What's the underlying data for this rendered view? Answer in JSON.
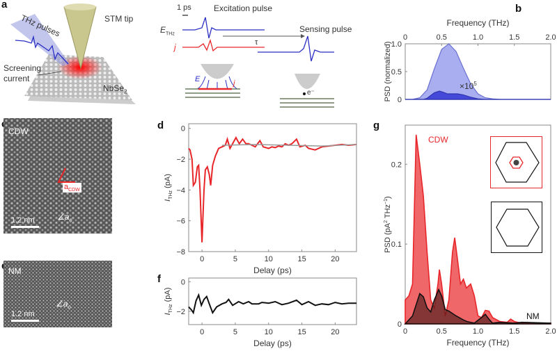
{
  "panels": {
    "a": "a",
    "b": "b",
    "c": "c",
    "d": "d",
    "e": "e",
    "f": "f",
    "g": "g"
  },
  "schematic": {
    "thz_pulses": "THz pulses",
    "stm_tip": "STM tip",
    "screening": "Screening",
    "current": "current",
    "material": "NbSe",
    "material_sub": "2",
    "scale": "1 ps",
    "excitation": "Excitation pulse",
    "sensing": "Sensing pulse",
    "e_thz": "E",
    "e_thz_sub": "THz",
    "j": "j",
    "tau": "τ",
    "E": "E",
    "electron": "e⁻"
  },
  "images": {
    "c": {
      "label": "CDW",
      "scale": "1.2 nm",
      "acdw": "a",
      "acdw_sub": "CDW",
      "a0": "a",
      "a0_sub": "0"
    },
    "e": {
      "label": "NM",
      "scale": "1.2 nm",
      "a0": "a",
      "a0_sub": "0"
    }
  },
  "colors": {
    "cdw": "#e8262a",
    "nm": "#111111",
    "pulse": "#2b2fc4",
    "psd_fill": "#a9aef0",
    "psd_inner": "#3a3fd8"
  },
  "chart_data": [
    {
      "id": "b",
      "type": "area",
      "xlabel": "Frequency (THz)",
      "xaxis_position": "top",
      "ylabel": "PSD (normalized)",
      "xlim": [
        0,
        2.0
      ],
      "ylim": [
        0,
        1.0
      ],
      "xticks": [
        "0",
        "0.5",
        "1.0",
        "1.5",
        "2.0"
      ],
      "yticks": [
        "0",
        "0.5",
        "1.0"
      ],
      "annotation": "×10",
      "annotation_sup": "5",
      "series": [
        {
          "x": [
            0,
            0.1,
            0.2,
            0.3,
            0.4,
            0.5,
            0.6,
            0.7,
            0.8,
            0.9,
            1.0,
            1.1,
            1.2,
            1.3,
            1.4,
            2.0
          ],
          "y": [
            0,
            0,
            0.03,
            0.17,
            0.55,
            0.9,
            1.0,
            0.86,
            0.56,
            0.28,
            0.1,
            0.03,
            0.01,
            0,
            0,
            0
          ]
        },
        {
          "x": [
            0,
            0.25,
            0.3,
            0.35,
            0.4,
            0.47,
            0.52,
            0.58,
            0.65,
            0.72,
            0.8,
            0.9,
            1.0,
            1.1,
            2.0
          ],
          "y": [
            0,
            0,
            0.02,
            0.07,
            0.12,
            0.15,
            0.13,
            0.1,
            0.1,
            0.1,
            0.08,
            0.04,
            0.01,
            0,
            0
          ]
        }
      ]
    },
    {
      "id": "d",
      "type": "line",
      "xlabel": "Delay (ps)",
      "ylabel": "I",
      "ylabel_sub": "THz",
      "ylabel_unit": " (pA)",
      "xlim": [
        -2,
        23.2
      ],
      "ylim": [
        -8,
        0.3
      ],
      "xticks": [
        "0",
        "5",
        "10",
        "15",
        "20"
      ],
      "yticks": [
        "0",
        "-2",
        "-4",
        "-6",
        "-8"
      ],
      "series": [
        {
          "x": [
            -2,
            -1.8,
            -1.5,
            -1.3,
            -1,
            -0.7,
            -0.5,
            -0.3,
            0,
            0.3,
            0.5,
            0.8,
            1.1,
            1.3,
            1.6,
            2,
            2.5,
            3,
            3.5,
            3.8,
            4.2,
            4.6,
            5.1,
            5.6,
            6.1,
            6.6,
            7,
            7.5,
            8,
            8.7,
            9.2,
            10,
            10.5,
            11,
            11.5,
            12,
            12.5,
            13,
            13.5,
            14.2,
            14.7,
            15.5,
            16,
            17,
            18,
            19,
            20,
            21,
            22,
            23.2
          ],
          "y": [
            -1.3,
            -1.4,
            -2,
            -3.7,
            -3.5,
            -2.5,
            -2.4,
            -4,
            -7.4,
            -4,
            -2.7,
            -2.5,
            -3,
            -3.7,
            -2.4,
            -1.8,
            -1.3,
            -1.2,
            -1.1,
            -0.7,
            -1.3,
            -1.0,
            -0.6,
            -1.0,
            -0.7,
            -1.0,
            -1.0,
            -1.1,
            -1.2,
            -0.8,
            -1.2,
            -1.3,
            -1.2,
            -1.25,
            -1.15,
            -1.2,
            -1.0,
            -1.1,
            -1.0,
            -0.7,
            -1.2,
            -1.1,
            -1.3,
            -1.4,
            -1.2,
            -1.15,
            -1.1,
            -1.05,
            -1.1,
            -1.05
          ]
        },
        {
          "x": [
            3,
            8,
            13,
            18,
            23.2
          ],
          "y": [
            -1.1,
            -1.05,
            -1.1,
            -1.15,
            -1.05
          ]
        }
      ]
    },
    {
      "id": "f",
      "type": "line",
      "xlabel": "Delay (ps)",
      "ylabel": "I",
      "ylabel_sub": "THz",
      "ylabel_unit": " (pA)",
      "xlim": [
        -2,
        23.2
      ],
      "ylim": [
        -2.9,
        0.25
      ],
      "xticks": [
        "0",
        "5",
        "10",
        "15",
        "20"
      ],
      "yticks": [
        "0",
        "-2"
      ],
      "series": [
        {
          "x": [
            -2,
            -1.6,
            -1.3,
            -0.9,
            -0.5,
            -0.1,
            0.3,
            0.7,
            1.1,
            1.6,
            2.2,
            3,
            3.6,
            4,
            4.6,
            5.5,
            6.2,
            7,
            7.5,
            8.5,
            9,
            10,
            11,
            12,
            13,
            14.2,
            15,
            16,
            17,
            18,
            19,
            20,
            21,
            22,
            23.2
          ],
          "y": [
            -1.7,
            -1.9,
            -2.1,
            -1.3,
            -0.9,
            -1.6,
            -1.2,
            -1.0,
            -1.5,
            -2.1,
            -1.7,
            -1.5,
            -1.4,
            -1.2,
            -1.6,
            -1.35,
            -1.5,
            -1.35,
            -1.5,
            -1.5,
            -1.4,
            -1.45,
            -1.35,
            -1.55,
            -1.45,
            -1.25,
            -1.55,
            -1.35,
            -1.6,
            -1.5,
            -1.55,
            -1.4,
            -1.5,
            -1.45,
            -1.45
          ]
        }
      ]
    },
    {
      "id": "g",
      "type": "area",
      "xlabel": "Frequency (THz)",
      "ylabel": "PSD (pA",
      "ylabel_sup": "2",
      "ylabel_rest": " THz",
      "ylabel_sup2": "−1",
      "ylabel_end": ")",
      "xlim": [
        0,
        2.0
      ],
      "ylim": [
        0,
        0.249
      ],
      "xticks": [
        "0",
        "0.5",
        "1.0",
        "1.5",
        "2.0"
      ],
      "yticks": [
        "0",
        "0.1",
        "0.2"
      ],
      "series": [
        {
          "name": "CDW",
          "x": [
            0,
            0.05,
            0.1,
            0.15,
            0.2,
            0.25,
            0.3,
            0.35,
            0.4,
            0.45,
            0.47,
            0.5,
            0.55,
            0.6,
            0.65,
            0.68,
            0.72,
            0.76,
            0.8,
            0.84,
            0.9,
            0.95,
            1.0,
            1.05,
            1.1,
            1.15,
            1.2,
            1.3,
            1.4,
            1.45,
            1.5,
            1.6,
            2.0
          ],
          "y": [
            0.03,
            0.035,
            0.05,
            0.237,
            0.2,
            0.16,
            0.09,
            0.03,
            0.02,
            0.05,
            0.068,
            0.05,
            0.01,
            0.03,
            0.09,
            0.108,
            0.08,
            0.05,
            0.056,
            0.045,
            0.05,
            0.035,
            0.01,
            0.008,
            0.017,
            0.016,
            0.008,
            0.003,
            0.002,
            0.006,
            0.003,
            0.001,
            0.001
          ]
        },
        {
          "name": "NM",
          "x": [
            0,
            0.1,
            0.2,
            0.25,
            0.3,
            0.35,
            0.4,
            0.46,
            0.5,
            0.55,
            0.6,
            0.7,
            0.8,
            0.85,
            0.95,
            1.05,
            1.1,
            1.15,
            1.2,
            1.3,
            1.5,
            1.6,
            2.0
          ],
          "y": [
            0,
            0.01,
            0.038,
            0.034,
            0.02,
            0.015,
            0.03,
            0.043,
            0.035,
            0.018,
            0.016,
            0.01,
            0.005,
            0.003,
            0.001,
            0.008,
            0.012,
            0.006,
            0.001,
            0.002,
            0.001,
            0.002,
            0.001
          ]
        }
      ]
    }
  ]
}
